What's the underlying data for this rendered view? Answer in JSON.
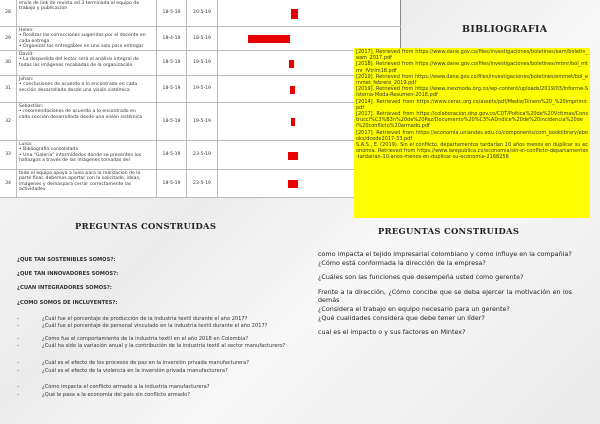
{
  "table": {
    "rows": [
      {
        "num": "28",
        "desc": [
          "envío de link de revista ed 3 terminada al equipo de",
          "trabajo y publicacion"
        ],
        "start": "18-5-19",
        "end": "20-5-19"
      },
      {
        "num": "29",
        "desc": [
          "Helen:",
          "• Realizar las correcciones sugeridas por el docente en",
          "cada entrega",
          "• Organizar los entregables en uno solo para entregar"
        ],
        "start": "18-4-19",
        "end": "18-5-19"
      },
      {
        "num": "30",
        "desc": [
          "David:",
          "• La despedida del lector será el análisis integral de",
          "todas las imágenes recabadas de la organización."
        ],
        "start": "18-5-19",
        "end": "19-5-19"
      },
      {
        "num": "31",
        "desc": [
          "Johan:",
          "• conclusiones de acuerdo a lo encontrado en cada",
          "sección desarrollada desde una visión sistémica"
        ],
        "start": "18-5-19",
        "end": "19-5-19"
      },
      {
        "num": "32",
        "desc": [
          "Sebastián:",
          "• recomendaciones de acuerdo a lo encontrado en",
          "cada sección desarrollada desde una visión sistémica"
        ],
        "start": "18-5-19",
        "end": "19-5-19"
      },
      {
        "num": "33",
        "desc": [
          "Luisa:",
          "• Bibliografía consolidada",
          "• Una \"Galería\" intermidedos donde se presenten los",
          "hallazgos a través de las imágenes tomadas del"
        ],
        "start": "18-5-19",
        "end": "23-5-19"
      },
      {
        "num": "34",
        "desc": [
          "todo el equipo apoya a luisa para la realizacion de la",
          "parte final, debemos aportar con lo solicitado, ideas,",
          "imágenes y demaspara cerrar correctamente las",
          "actividades"
        ],
        "start": "18-5-19",
        "end": "23-5-19"
      }
    ],
    "bar_color": "#e80000"
  },
  "bibliografia": {
    "title": "BIBLIOGRAFIA",
    "highlight_color": "#ffff00",
    "entries": [
      "[2017]. Retrieved from https://www.dane.gov.co/files/investigaciones/boletines/eam/boletin_eam_2017.pdf",
      "[2018]. Retrieved from https://www.dane.gov.co/files/investigaciones/boletines/mtmr/bol_mtmr_IVtrim18.pdf",
      "[2019]. Retrieved from https://www.dane.gov.co/files/investigaciones/boletines/emmet/bol_emmet_febrero_2019.pdf",
      "[2019]. Retrieved from https://www.inexmoda.org.co/wp-content/uploads/2019/03/Informe-Sistema-Moda-Resumen-2018.pdf",
      "[2014]. Retrieved from https://www.cerac.org.co/assets/pdf/Media/Dinero%20_%20imprimir.pdf",
      "[2017]. Retrieved from https://colaboracion.dnp.gov.co/CDT/Poltica%20de%20Vctimas/Construcci%C3%B3n%20de%20Paz/Documento%20%C3%ADndice%20de%20incidencia%20del%20conflicto%20armado.pdf",
      "[2017]. Retrieved from https://economia.uniandes.edu.co/components/com_booklibrary/ebooks/dcede2017-33.pdf",
      "S.A.S., E. (2019). Sin el conflicto, departamentos tardarían 10 años menos en duplicar su economía. Retrieved from https://www.larepublica.co/economia/sin-el-conflicto-departamentos-tardarian-10-anos-menos-en-duplicar-su-economia-2168256"
    ]
  },
  "left": {
    "title": "PREGUNTAS CONSTRUIDAS",
    "headings": [
      "¿QUE TAN SOSTENIBLES SOMOS?:",
      "¿QUE TAN INNOVADORES SOMOS?:",
      "¿CUAN INTEGRADORES SOMOS?:",
      "¿COMO SOMOS DE INCLUYENTES?:"
    ],
    "questions": [
      "¿Cuál fue el porcentaje de producción de la industria textil durante el año 2017?",
      "¿Cuál fue el porcentaje de personal vinculado en la industria textil durante el año 2017?",
      "¿Cómo fue el comportamiento de la industria textil en el año 2018 en Colombia?",
      "¿Cuál ha sido la variación anual y la contribución de la industria textil al sector manufacturero?",
      "¿Cuál es el efecto de los procesos de paz en la inversión privada manufacturera?",
      "¿Cuál es el efecto de la violencia en la inversión privada manufacturera?",
      "¿Cómo impacta el conflicto armado a la industria manufacturera?",
      "¿Qué    le pasa a la economía del país sin conflicto armado?"
    ],
    "bullet": "-"
  },
  "right": {
    "title": "PREGUNTAS CONSTRUIDAS",
    "lines": [
      "como impacta el tejido impresarial colombiano y como influye en la compañia?",
      "¿Cómo está conformada la dirección de la empresa?",
      "",
      "¿Cuáles son las funciones que desempeña usted como gerente?",
      "",
      "Frente a la dirección, ¿Cómo concibe que se deba ejercer la motivación en los demás",
      "¿Considera el trabajo en equipo necesario para un gerente?",
      "¿Qué cualidades considera que debe tener un líder?",
      "",
      "cual es el impacto o y sus factores en Mintex?"
    ]
  }
}
